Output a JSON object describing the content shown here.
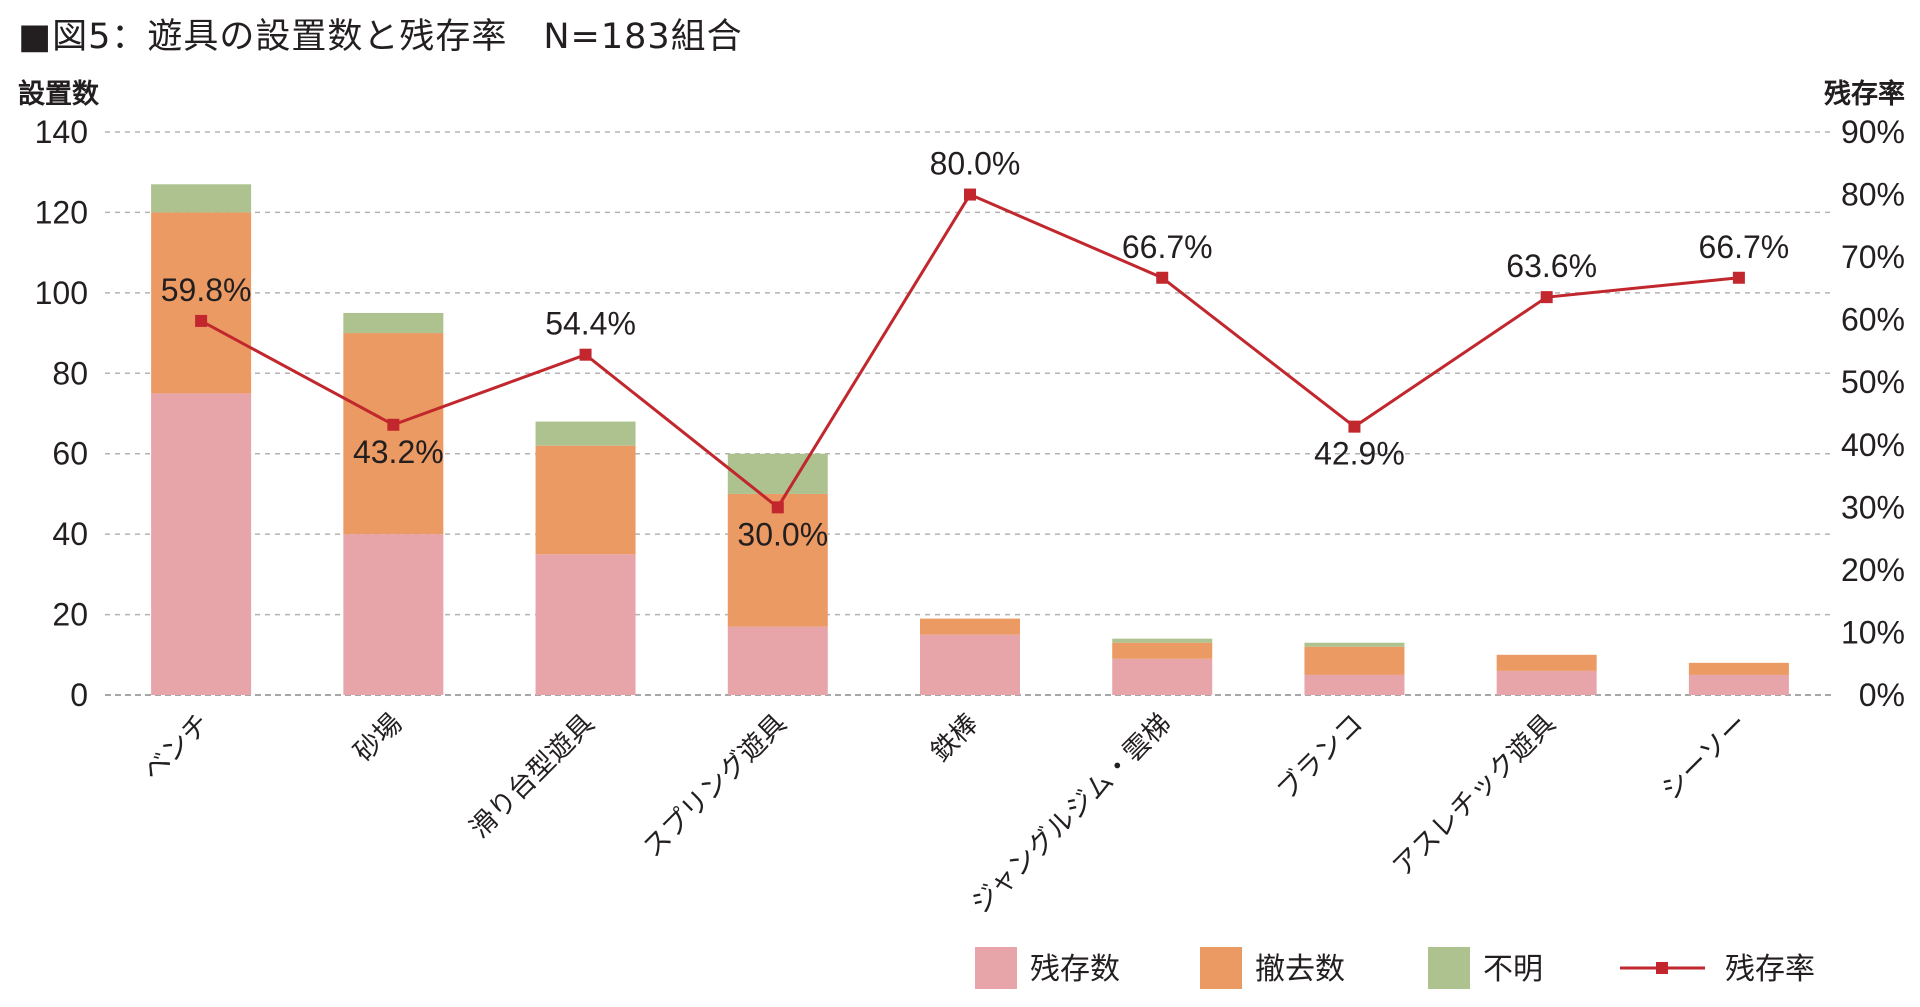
{
  "title": "■図5：遊具の設置数と残存率　N=183組合",
  "chart_data": {
    "type": "bar",
    "stacked": true,
    "title": "■図5：遊具の設置数と残存率　N=183組合",
    "ylabel": "設置数",
    "y2label": "残存率",
    "ylim": [
      0,
      140
    ],
    "yticks": [
      0,
      20,
      40,
      60,
      80,
      100,
      120,
      140
    ],
    "y2lim": [
      0,
      90
    ],
    "y2ticks": [
      "0%",
      "10%",
      "20%",
      "30%",
      "40%",
      "50%",
      "60%",
      "70%",
      "80%",
      "90%"
    ],
    "grid": true,
    "categories": [
      "ベンチ",
      "砂場",
      "滑り台型遊具",
      "スプリング遊具",
      "鉄棒",
      "ジャングルジム・雲梯",
      "ブランコ",
      "アスレチック遊具",
      "シーソー"
    ],
    "series": [
      {
        "name": "残存数",
        "type": "bar",
        "color": "#e8a5a9",
        "values": [
          75,
          40,
          35,
          17,
          15,
          9,
          5,
          6,
          5
        ]
      },
      {
        "name": "撤去数",
        "type": "bar",
        "color": "#ea9a62",
        "values": [
          45,
          50,
          27,
          33,
          4,
          4,
          7,
          4,
          3
        ]
      },
      {
        "name": "不明",
        "type": "bar",
        "color": "#aec28f",
        "values": [
          7,
          5,
          6,
          10,
          0,
          1,
          1,
          0,
          0
        ]
      },
      {
        "name": "残存率",
        "type": "line",
        "axis": "right",
        "color": "#c1272d",
        "values": [
          59.8,
          43.2,
          54.4,
          30.0,
          80.0,
          66.7,
          42.9,
          63.6,
          66.7
        ],
        "labels": [
          "59.8%",
          "43.2%",
          "54.4%",
          "30.0%",
          "80.0%",
          "66.7%",
          "42.9%",
          "63.6%",
          "66.7%"
        ]
      }
    ],
    "legend": {
      "position": "bottom-right",
      "items": [
        "残存数",
        "撤去数",
        "不明",
        "残存率"
      ]
    }
  }
}
